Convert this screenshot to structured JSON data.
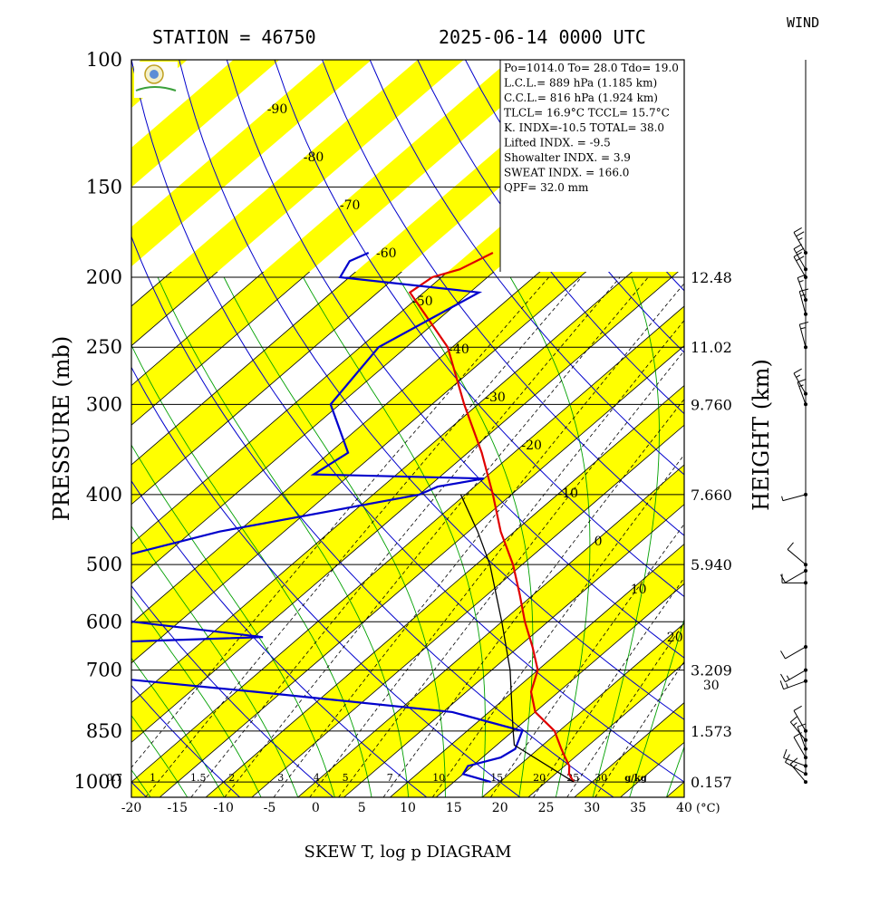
{
  "header": {
    "station": "STATION = 46750",
    "datetime": "2025-06-14 0000 UTC",
    "wind_title": "WIND"
  },
  "axes": {
    "ylabel": "PRESSURE (mb)",
    "y2label": "HEIGHT (km)",
    "xlabel": "SKEW T, log p DIAGRAM",
    "x_unit": "(°C)"
  },
  "info_box": {
    "lines": [
      "Po=1014.0 To= 28.0 Tdo= 19.0",
      "L.C.L.= 889 hPa (1.185 km)",
      "C.C.L.= 816 hPa (1.924 km)",
      "TLCL= 16.9°C TCCL= 15.7°C",
      "K. INDX=-10.5  TOTAL= 38.0",
      "Lifted INDX. =  -9.5",
      "Showalter INDX. =     3.9",
      "SWEAT INDX. =  166.0",
      "QPF= 32.0 mm"
    ]
  },
  "colors": {
    "temperature": "#e00000",
    "dewpoint": "#0000cc",
    "parcel": "#000000",
    "isotherm_band": "#ffff00",
    "dry_adiabat": "#0000cc",
    "moist_adiabat": "#00a000",
    "mixing_ratio": "#000000"
  },
  "chart_data": {
    "type": "line",
    "title": "SKEW T, log p DIAGRAM",
    "x_axis": {
      "label": "(°C)",
      "range": [
        -20,
        40
      ],
      "ticks": [
        -20,
        -15,
        -10,
        -5,
        0,
        5,
        10,
        15,
        20,
        25,
        30,
        35,
        40
      ],
      "tick_labels": [
        "-20",
        "-15",
        "-10",
        "-5",
        "0",
        "5",
        "10",
        "15",
        "20",
        "25",
        "30",
        "35",
        "40"
      ]
    },
    "y_axis": {
      "label": "PRESSURE (mb)",
      "scale": "log",
      "range": [
        1050,
        100
      ],
      "ticks": [
        100,
        150,
        200,
        250,
        300,
        400,
        500,
        600,
        700,
        850,
        1000
      ],
      "tick_labels": [
        "100",
        "150",
        "200",
        "250",
        "300",
        "400",
        "500",
        "600",
        "700",
        "850",
        "1000"
      ]
    },
    "height_axis": {
      "label": "HEIGHT (km)",
      "pressures": [
        200,
        250,
        300,
        400,
        500,
        700,
        850,
        1000
      ],
      "labels": [
        "12.48",
        "11.02",
        "9.760",
        "7.660",
        "5.940",
        "3.209",
        "1.573",
        "0.157"
      ]
    },
    "isotherm_labels": {
      "values": [
        -90,
        -80,
        -70,
        -60,
        -50,
        -40,
        -30,
        -20,
        -10,
        0,
        10,
        20,
        30
      ],
      "labels": [
        "-90",
        "-80",
        "-70",
        "-60",
        "-50",
        "-40",
        "-30",
        "-20",
        "-10",
        "0",
        "10",
        "20",
        "30"
      ]
    },
    "mixing_ratio": {
      "values": [
        0.7,
        1,
        1.5,
        2,
        3,
        4,
        5,
        7,
        10,
        15,
        20,
        25,
        30
      ],
      "labels": [
        "0.7",
        "1",
        "1.5",
        "2",
        "3",
        "4",
        "5",
        "7",
        "10",
        "15",
        "20",
        "25",
        "30"
      ],
      "unit_label": "g/kg"
    },
    "series": [
      {
        "key": "dewpoint",
        "points": [
          [
            1000,
            19.0
          ],
          [
            975,
            15.0
          ],
          [
            950,
            14.5
          ],
          [
            925,
            17.0
          ],
          [
            900,
            17.5
          ],
          [
            850,
            16.0
          ],
          [
            800,
            6.0
          ],
          [
            750,
            -18.0
          ],
          [
            700,
            -45.0
          ],
          [
            650,
            -55.0
          ],
          [
            630,
            -24.0
          ],
          [
            600,
            -40.0
          ],
          [
            550,
            -55.0
          ],
          [
            500,
            -52.0
          ],
          [
            450,
            -42.0
          ],
          [
            400,
            -25.0
          ],
          [
            390,
            -24.0
          ],
          [
            380,
            -20.0
          ],
          [
            375,
            -39.0
          ],
          [
            350,
            -38.0
          ],
          [
            300,
            -46.0
          ],
          [
            250,
            -48.0
          ],
          [
            210,
            -44.0
          ],
          [
            200,
            -61.0
          ],
          [
            190,
            -62.0
          ],
          [
            185,
            -61.0
          ]
        ]
      },
      {
        "key": "temperature",
        "points": [
          [
            1000,
            28.0
          ],
          [
            975,
            26.5
          ],
          [
            950,
            25.5
          ],
          [
            925,
            24.0
          ],
          [
            900,
            22.5
          ],
          [
            850,
            19.5
          ],
          [
            800,
            15.0
          ],
          [
            750,
            12.0
          ],
          [
            700,
            10.0
          ],
          [
            650,
            6.5
          ],
          [
            600,
            2.5
          ],
          [
            550,
            -1.5
          ],
          [
            500,
            -6.0
          ],
          [
            450,
            -11.5
          ],
          [
            400,
            -17.0
          ],
          [
            350,
            -23.5
          ],
          [
            300,
            -31.5
          ],
          [
            250,
            -40.5
          ],
          [
            210,
            -51.5
          ],
          [
            200,
            -51.0
          ],
          [
            195,
            -49.0
          ],
          [
            185,
            -47.5
          ]
        ]
      },
      {
        "key": "parcel",
        "points": [
          [
            1000,
            28.0
          ],
          [
            889,
            16.9
          ],
          [
            850,
            15.0
          ],
          [
            800,
            12.5
          ],
          [
            700,
            7.0
          ],
          [
            600,
            0.0
          ],
          [
            500,
            -8.5
          ],
          [
            450,
            -14.0
          ],
          [
            400,
            -20.5
          ]
        ]
      }
    ],
    "wind": {
      "pressures": [
        1000,
        975,
        950,
        925,
        900,
        875,
        850,
        725,
        700,
        650,
        530,
        510,
        500,
        400,
        300,
        290,
        250,
        225,
        215,
        200,
        195,
        185
      ],
      "directions": [
        320,
        300,
        290,
        330,
        340,
        320,
        330,
        250,
        240,
        240,
        270,
        240,
        310,
        255,
        340,
        330,
        345,
        345,
        340,
        330,
        330,
        330
      ],
      "speeds": [
        15,
        10,
        10,
        10,
        10,
        15,
        10,
        15,
        15,
        10,
        10,
        10,
        10,
        5,
        15,
        15,
        15,
        15,
        15,
        20,
        20,
        25
      ]
    }
  }
}
